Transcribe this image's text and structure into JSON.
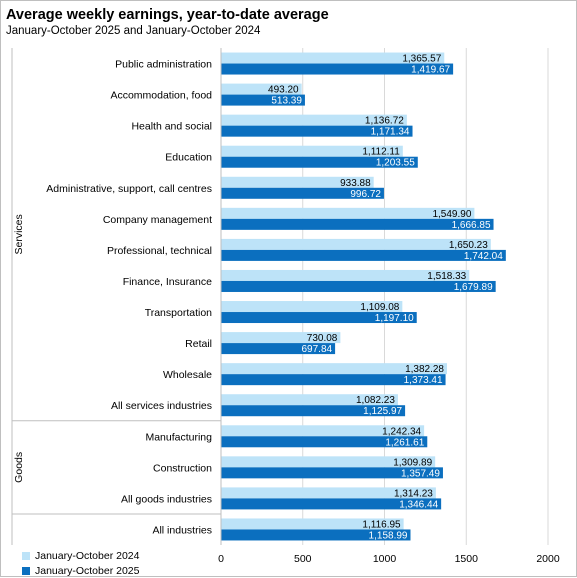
{
  "header": {
    "title": "Average weekly earnings, year-to-date average",
    "subtitle": "January-October 2025 and January-October 2024"
  },
  "colors": {
    "series_2024": "#bde3f8",
    "series_2025": "#0b6fbf",
    "grid": "#d9d9d9"
  },
  "chart_data": {
    "type": "bar",
    "orientation": "horizontal",
    "title": "Average weekly earnings, year-to-date average",
    "subtitle": "January-October 2025 and January-October 2024",
    "categories": [
      "Public administration",
      "Accommodation, food",
      "Health and social",
      "Education",
      "Administrative, support, call centres",
      "Company management",
      "Professional, technical",
      "Finance, Insurance",
      "Transportation",
      "Retail",
      "Wholesale",
      "All services industries",
      "Manufacturing",
      "Construction",
      "All goods industries",
      "All industries"
    ],
    "groups": [
      {
        "name": "Services",
        "count": 12
      },
      {
        "name": "Goods",
        "count": 3
      },
      {
        "name": "",
        "count": 1
      }
    ],
    "series": [
      {
        "name": "January-October 2024",
        "values": [
          1365.57,
          493.2,
          1136.72,
          1112.11,
          933.88,
          1549.9,
          1650.23,
          1518.33,
          1109.08,
          730.08,
          1382.28,
          1082.23,
          1242.34,
          1309.89,
          1314.23,
          1116.95
        ],
        "labels": [
          "1,365.57",
          "493.20",
          "1,136.72",
          "1,112.11",
          "933.88",
          "1,549.90",
          "1,650.23",
          "1,518.33",
          "1,109.08",
          "730.08",
          "1,382.28",
          "1,082.23",
          "1,242.34",
          "1,309.89",
          "1,314.23",
          "1,116.95"
        ]
      },
      {
        "name": "January-October 2025",
        "values": [
          1419.67,
          513.39,
          1171.34,
          1203.55,
          996.72,
          1666.85,
          1742.04,
          1679.89,
          1197.1,
          697.84,
          1373.41,
          1125.97,
          1261.61,
          1357.49,
          1346.44,
          1158.99
        ],
        "labels": [
          "1,419.67",
          "513.39",
          "1,171.34",
          "1,203.55",
          "996.72",
          "1,666.85",
          "1,742.04",
          "1,679.89",
          "1,197.10",
          "697.84",
          "1,373.41",
          "1,125.97",
          "1,261.61",
          "1,357.49",
          "1,346.44",
          "1,158.99"
        ]
      }
    ],
    "xlim": [
      0,
      2000
    ],
    "xticks": [
      0,
      500,
      1000,
      1500,
      2000
    ],
    "xtick_labels": [
      "0",
      "500",
      "1000",
      "1500",
      "2000"
    ],
    "grid": true,
    "legend_position": "bottom-left"
  }
}
